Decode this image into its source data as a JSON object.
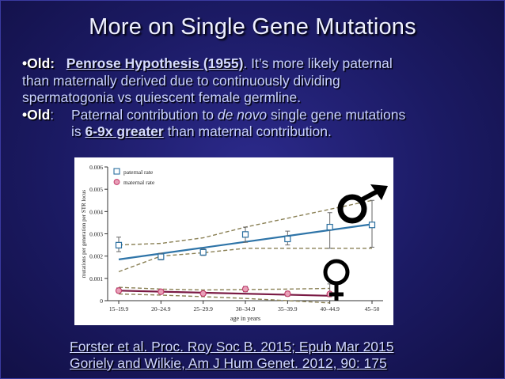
{
  "slide": {
    "title": "More on Single Gene Mutations",
    "bullets": [
      {
        "marker": "•Old:",
        "name": "Penrose Hypothesis (1955)",
        "sep": ".",
        "text1": " It’s more likely paternal",
        "line2": "than maternally derived due to continuously dividing",
        "line3": "spermatogonia vs quiescent female germline."
      },
      {
        "marker": "•Old",
        "colon": ":",
        "text1": "Paternal contribution to ",
        "italic": "de novo",
        "text2": " single gene mutations",
        "line2_pre": "is ",
        "bold": "6-9x greater",
        "line2_post": " than maternal contribution."
      }
    ],
    "references": [
      "Forster et al. Proc. Roy Soc B. 2015; Epub Mar 2015",
      "Goriely and Wilkie, Am J Hum Genet. 2012, 90: 175"
    ],
    "colors": {
      "background": "#1b1a63",
      "paternal": "#2a6fa0",
      "maternal": "#c23a6a",
      "trend_paternal": "#2e74a8",
      "trend_maternal": "#7a1a44",
      "ci": "#8a8055"
    },
    "symbols": {
      "male": "male-symbol",
      "female": "female-symbol"
    }
  },
  "chart_data": {
    "type": "scatter",
    "categories": [
      "15–19.9",
      "20–24.9",
      "25–29.9",
      "30–34.9",
      "35–39.9",
      "40–44.9",
      "45–50"
    ],
    "ylabel": "mutations per generation per STR locus",
    "xlabel": "age in years",
    "yticks": [
      "0",
      "0.001",
      "0.002",
      "0.003",
      "0.004",
      "0.005",
      "0.006"
    ],
    "ylim": [
      0,
      0.006
    ],
    "series": [
      {
        "name": "paternal rate",
        "marker": "square",
        "values": [
          0.00249,
          0.00197,
          0.00217,
          0.00297,
          0.00277,
          0.0033,
          0.0034
        ],
        "err_low": [
          0.0022,
          0.00183,
          0.00203,
          0.00262,
          0.0025,
          0.00235,
          0.0024
        ],
        "err_high": [
          0.00285,
          0.00213,
          0.00232,
          0.0033,
          0.00312,
          0.00395,
          0.0045
        ],
        "trend": [
          0.00185,
          0.00343
        ],
        "ci_upper": [
          0.0025,
          0.00257,
          0.00282,
          0.0033,
          0.0037,
          0.0041,
          0.0045
        ],
        "ci_lower": [
          0.0013,
          0.002,
          0.00215,
          0.00235,
          0.00235,
          0.00235,
          0.00235
        ]
      },
      {
        "name": "maternal rate",
        "marker": "circle",
        "values": [
          0.00045,
          0.0004,
          0.00032,
          0.00052,
          0.00031,
          0.0003
        ],
        "err_low": [
          0.00035,
          0.00032,
          0.00025,
          0.0004,
          0.0002,
          0.00018
        ],
        "err_high": [
          0.00057,
          0.00048,
          0.0004,
          0.00064,
          0.00042,
          0.00075
        ],
        "trend": [
          0.00045,
          0.00022
        ],
        "ci_upper": [
          0.0006,
          0.00052,
          0.00048,
          0.0005,
          0.00052,
          0.00055
        ],
        "ci_lower": [
          0.0003,
          0.00025,
          0.00018,
          0.0001,
          0.0,
          -0.0001
        ]
      }
    ],
    "legend": "top-left"
  }
}
